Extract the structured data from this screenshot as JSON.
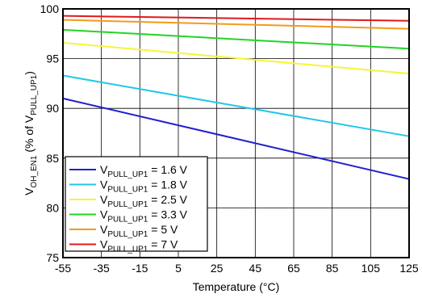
{
  "chart_data": {
    "type": "line",
    "xlabel": "Temperature (°C)",
    "ylabel_parts": {
      "a": "V",
      "a_sub": "OH_EN1",
      "b": " (% of V",
      "b_sub": "PULL_UP1",
      "c": ")"
    },
    "xlim": [
      -55,
      125
    ],
    "ylim": [
      75,
      100
    ],
    "x_ticks": [
      -55,
      -35,
      -15,
      5,
      25,
      45,
      65,
      85,
      105,
      125
    ],
    "y_ticks": [
      75,
      80,
      85,
      90,
      95,
      100
    ],
    "grid": true,
    "legend_position": "bottom-left",
    "legend_label_prefix": "V",
    "legend_label_sub": "PULL_UP1",
    "series": [
      {
        "name": "= 1.6 V",
        "color": "#1f1fd0",
        "x": [
          -55,
          125
        ],
        "y": [
          91.0,
          82.9
        ]
      },
      {
        "name": "= 1.8 V",
        "color": "#22c7e8",
        "x": [
          -55,
          125
        ],
        "y": [
          93.3,
          87.2
        ]
      },
      {
        "name": "= 2.5 V",
        "color": "#f5f53a",
        "x": [
          -55,
          125
        ],
        "y": [
          96.6,
          93.5
        ]
      },
      {
        "name": "= 3.3 V",
        "color": "#22d422",
        "x": [
          -55,
          125
        ],
        "y": [
          97.9,
          96.0
        ]
      },
      {
        "name": "= 5 V",
        "color": "#f59a1a",
        "x": [
          -55,
          125
        ],
        "y": [
          98.9,
          98.0
        ]
      },
      {
        "name": "= 7 V",
        "color": "#e01a1a",
        "x": [
          -55,
          125
        ],
        "y": [
          99.3,
          98.8
        ]
      }
    ]
  }
}
